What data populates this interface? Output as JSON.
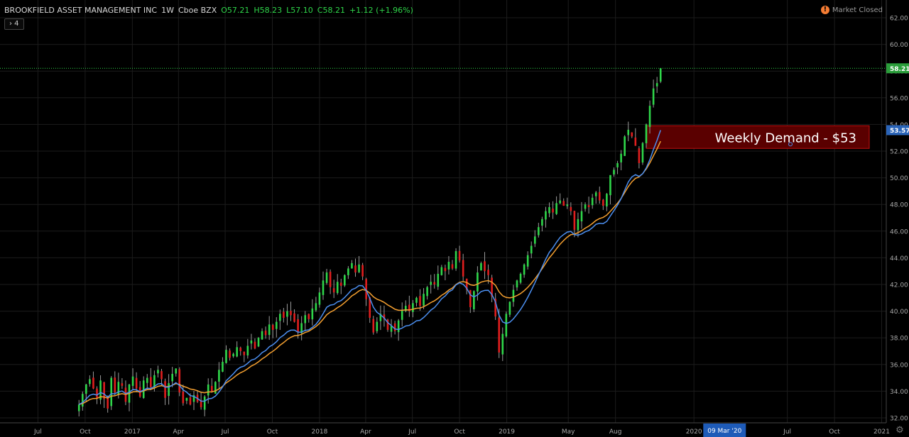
{
  "header": {
    "symbol": "BROOKFIELD ASSET MANAGEMENT INC",
    "interval": "1W",
    "exchange": "Cboe BZX",
    "open": "O57.21",
    "high": "H58.23",
    "low": "L57.10",
    "close": "C58.21",
    "change": "+1.12 (+1.96%)",
    "indicator_toggle": "› 4"
  },
  "status": {
    "icon": "alert-icon",
    "glyph": "!",
    "text": "Market Closed"
  },
  "colors": {
    "up": "#2fd64a",
    "down": "#e01e1e",
    "ma_fast": "#4c8ff0",
    "ma_slow": "#f5a030",
    "last_price": "#2fd64a",
    "demand_zone": "#5a0000",
    "grid": "#1c1c1c"
  },
  "chart_data": {
    "type": "candlestick",
    "ylim": [
      31.7,
      63.0
    ],
    "y_ticks": [
      "62.00",
      "60.00",
      "58.00",
      "56.00",
      "54.00",
      "52.00",
      "50.00",
      "48.00",
      "46.00",
      "44.00",
      "42.00",
      "40.00",
      "38.00",
      "36.00",
      "34.00",
      "32.00"
    ],
    "x_ticks": [
      {
        "label": "Jul",
        "x": "2016-07-01"
      },
      {
        "label": "Oct",
        "x": "2016-10-01"
      },
      {
        "label": "2017",
        "x": "2017-01-01"
      },
      {
        "label": "Apr",
        "x": "2017-04-01"
      },
      {
        "label": "Jul",
        "x": "2017-07-01"
      },
      {
        "label": "Oct",
        "x": "2017-10-01"
      },
      {
        "label": "2018",
        "x": "2018-01-01"
      },
      {
        "label": "Apr",
        "x": "2018-04-01"
      },
      {
        "label": "Jul",
        "x": "2018-07-01"
      },
      {
        "label": "Oct",
        "x": "2018-10-01"
      },
      {
        "label": "2019",
        "x": "2019-01-01"
      },
      {
        "label": "May",
        "x": "2019-05-01"
      },
      {
        "label": "Aug",
        "x": "2019-08-01"
      },
      {
        "label": "2020",
        "x": "2020-01-01"
      },
      {
        "label": "Jul",
        "x": "2020-07-01"
      },
      {
        "label": "Oct",
        "x": "2020-10-01"
      },
      {
        "label": "2021",
        "x": "2021-01-01"
      }
    ],
    "x_range": [
      "2016-04-18",
      "2021-01-10"
    ],
    "crosshair_date": "09 Mar '20",
    "crosshair_x": "2020-03-09",
    "last_price": 58.21,
    "ma_fast_last": 53.57,
    "ma_fast_label": "53.57",
    "last_price_label": "58.21",
    "closes": [
      33.0,
      33.8,
      34.5,
      34.9,
      34.2,
      33.5,
      34.8,
      33.4,
      32.7,
      35.0,
      33.9,
      34.7,
      34.4,
      33.2,
      34.5,
      35.1,
      34.2,
      33.6,
      34.8,
      35.0,
      34.3,
      35.2,
      35.6,
      34.9,
      33.5,
      34.6,
      35.3,
      35.7,
      33.9,
      33.1,
      33.5,
      33.0,
      33.7,
      33.2,
      32.8,
      33.6,
      34.5,
      34.0,
      34.7,
      35.6,
      36.2,
      37.1,
      36.5,
      36.8,
      37.3,
      37.0,
      36.7,
      37.4,
      37.8,
      37.2,
      38.0,
      38.5,
      38.2,
      39.0,
      38.6,
      39.2,
      39.8,
      39.5,
      40.0,
      39.7,
      39.2,
      38.4,
      39.1,
      39.7,
      39.4,
      40.2,
      40.6,
      41.4,
      42.3,
      42.9,
      41.8,
      41.4,
      42.2,
      41.9,
      42.7,
      43.2,
      43.6,
      42.9,
      43.5,
      42.6,
      40.9,
      39.5,
      38.4,
      39.2,
      39.8,
      39.4,
      38.6,
      38.9,
      38.5,
      39.3,
      40.1,
      40.4,
      40.0,
      40.6,
      41.0,
      40.4,
      41.3,
      41.8,
      42.2,
      42.0,
      42.8,
      43.3,
      43.0,
      43.7,
      43.2,
      44.5,
      43.8,
      42.6,
      41.6,
      40.3,
      41.5,
      42.9,
      43.6,
      43.0,
      42.7,
      41.1,
      39.6,
      36.9,
      38.3,
      39.8,
      40.7,
      41.6,
      42.3,
      42.8,
      43.5,
      44.2,
      44.9,
      45.6,
      46.3,
      46.9,
      47.5,
      47.8,
      47.4,
      48.1,
      48.3,
      47.9,
      48.0,
      47.5,
      46.1,
      46.9,
      47.5,
      48.0,
      47.8,
      48.5,
      48.9,
      48.3,
      47.9,
      48.8,
      50.2,
      50.6,
      51.1,
      51.8,
      53.1,
      53.6,
      53.1,
      52.4,
      51.1,
      52.6,
      54.0,
      55.4,
      56.7,
      57.1,
      58.21
    ]
  },
  "annotation": {
    "label": "Weekly Demand - $53",
    "y_low": 52.2,
    "y_high": 53.9,
    "x_start": "2019-09-30"
  }
}
